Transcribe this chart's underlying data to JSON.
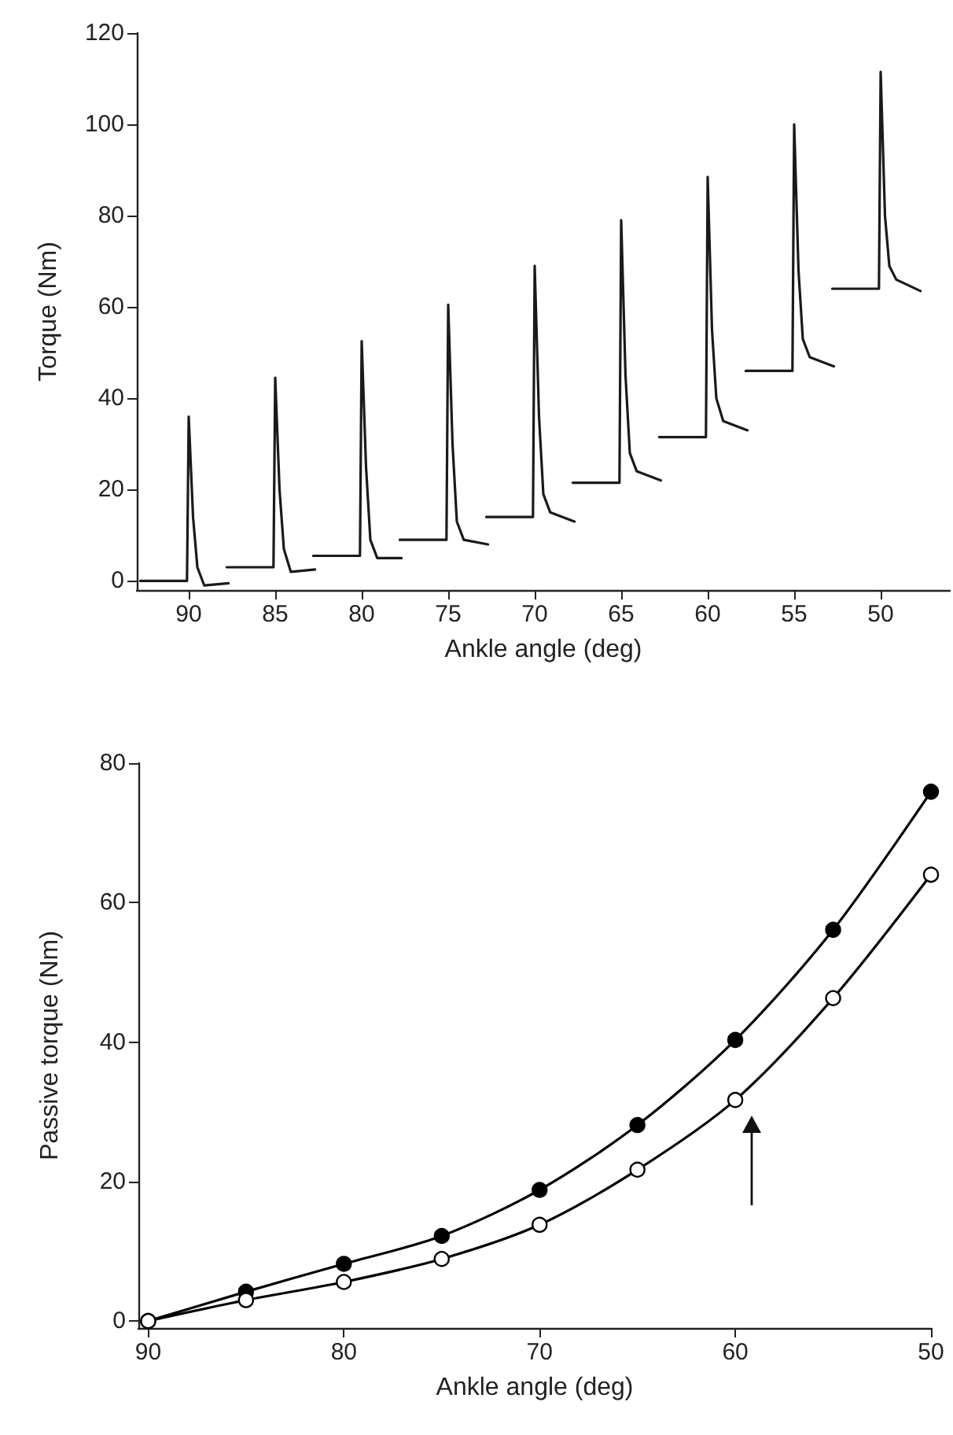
{
  "chart_data": [
    {
      "type": "line",
      "xlabel": "Ankle angle (deg)",
      "ylabel": "Torque (Nm)",
      "xlim": [
        93,
        46
      ],
      "xticks": [
        90,
        85,
        80,
        75,
        70,
        65,
        60,
        55,
        50
      ],
      "ylim": [
        -2,
        120
      ],
      "yticks": [
        0,
        20,
        40,
        60,
        80,
        100,
        120
      ],
      "grid": false,
      "marker": "none",
      "line_style": "solid",
      "series": [
        {
          "color": "#1a1a1a",
          "x": [
            92.8,
            90.1,
            90,
            89.75,
            89.5,
            89.1,
            87.7
          ],
          "values": [
            0,
            0,
            36,
            14,
            3,
            -1,
            -0.5
          ]
        },
        {
          "color": "#1a1a1a",
          "x": [
            87.8,
            85.1,
            85,
            84.75,
            84.5,
            84.1,
            82.7
          ],
          "values": [
            3,
            3,
            44.5,
            20,
            7,
            2,
            2.5
          ]
        },
        {
          "color": "#1a1a1a",
          "x": [
            82.8,
            80.1,
            80,
            79.75,
            79.5,
            79.1,
            77.7
          ],
          "values": [
            5.5,
            5.5,
            52.5,
            25,
            9,
            5,
            5
          ]
        },
        {
          "color": "#1a1a1a",
          "x": [
            77.8,
            75.1,
            75,
            74.75,
            74.5,
            74.1,
            72.7
          ],
          "values": [
            9,
            9,
            60.5,
            30,
            13,
            9,
            8
          ]
        },
        {
          "color": "#1a1a1a",
          "x": [
            72.8,
            70.1,
            70,
            69.75,
            69.5,
            69.1,
            67.7
          ],
          "values": [
            14,
            14,
            69,
            36,
            19,
            15,
            13
          ]
        },
        {
          "color": "#1a1a1a",
          "x": [
            67.8,
            65.1,
            65,
            64.75,
            64.5,
            64.1,
            62.7
          ],
          "values": [
            21.5,
            21.5,
            79,
            45,
            28,
            24,
            22
          ]
        },
        {
          "color": "#1a1a1a",
          "x": [
            62.8,
            60.1,
            60,
            59.75,
            59.5,
            59.1,
            57.7
          ],
          "values": [
            31.5,
            31.5,
            88.5,
            55,
            40,
            35,
            33
          ]
        },
        {
          "color": "#1a1a1a",
          "x": [
            57.8,
            55.1,
            55,
            54.75,
            54.5,
            54.1,
            52.7
          ],
          "values": [
            46,
            46,
            100,
            68,
            53,
            49,
            47
          ]
        },
        {
          "color": "#1a1a1a",
          "x": [
            52.8,
            50.1,
            50,
            49.75,
            49.5,
            49.1,
            47.7
          ],
          "values": [
            64,
            64,
            111.5,
            80,
            69,
            66,
            63.5
          ]
        }
      ]
    },
    {
      "type": "line",
      "xlabel": "Ankle angle (deg)",
      "ylabel": "Passive torque (Nm)",
      "xlim": [
        90.5,
        50
      ],
      "xticks": [
        90,
        80,
        70,
        60,
        50
      ],
      "ylim": [
        -1,
        80
      ],
      "yticks": [
        0,
        20,
        40,
        60,
        80
      ],
      "grid": false,
      "marker": "circle",
      "line_style": "solid",
      "x": [
        90,
        85,
        80,
        75,
        70,
        65,
        60,
        55,
        50
      ],
      "series": [
        {
          "color": "#000000",
          "values": [
            0,
            4.2,
            8.2,
            12.2,
            18.8,
            28.1,
            40.3,
            56.1,
            75.9
          ]
        },
        {
          "color": "#000000",
          "colors": [
            "#ffffff",
            "#ffffff",
            "#ffffff",
            "#ffffff",
            "#ffffff",
            "#ffffff",
            "#ffffff",
            "#ffffff",
            "#ffffff"
          ],
          "values": [
            0,
            3.0,
            5.6,
            8.9,
            13.8,
            21.7,
            31.7,
            46.3,
            64.0
          ]
        }
      ]
    }
  ]
}
